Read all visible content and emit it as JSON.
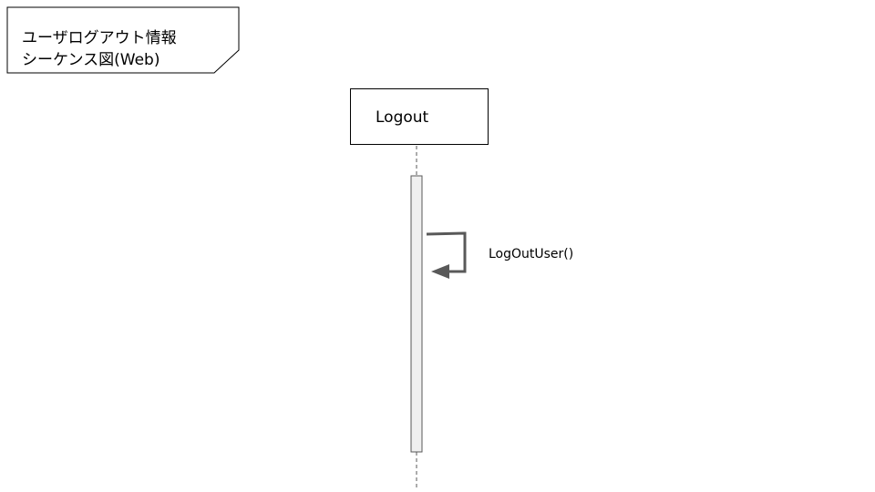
{
  "frame": {
    "title_line1": "ユーザログアウト情報",
    "title_line2": "シーケンス図(Web)"
  },
  "participant": {
    "name": "Logout"
  },
  "message": {
    "label": "LogOutUser()",
    "type": "self-call"
  },
  "colors": {
    "line": "#000000",
    "arrow": "#595959",
    "activation_fill": "#f0f0f0",
    "activation_stroke": "#595959",
    "lifeline": "#595959"
  }
}
